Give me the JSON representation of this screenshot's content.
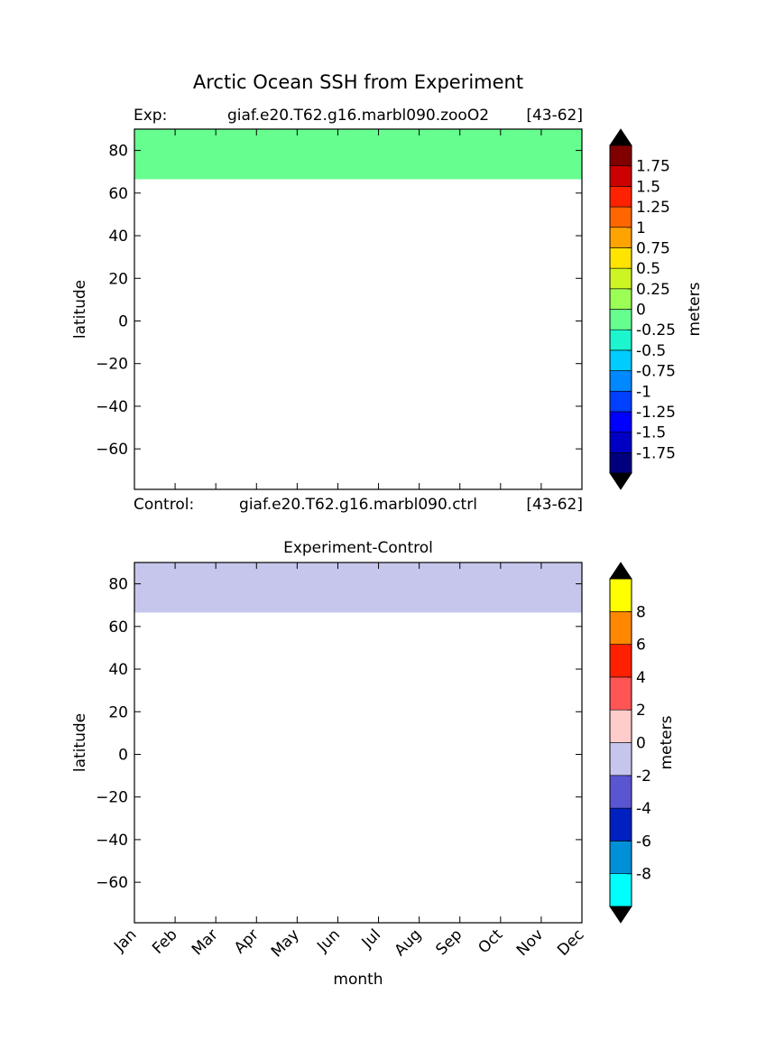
{
  "figure": {
    "suptitle": "Arctic Ocean SSH from Experiment"
  },
  "chart_data": [
    {
      "type": "heatmap",
      "panel": "top",
      "title": "",
      "header_left_label": "Exp:",
      "header_center": "giaf.e20.T62.g16.marbl090.zooO2",
      "header_right": "[43-62]",
      "footer_left_label": "Control:",
      "footer_center": "giaf.e20.T62.g16.marbl090.ctrl",
      "footer_right": "[43-62]",
      "xlabel": "",
      "ylabel": "latitude",
      "xlim": [
        0,
        11
      ],
      "ylim": [
        -79,
        90
      ],
      "yticks": [
        80,
        60,
        40,
        20,
        0,
        -20,
        -40,
        -60
      ],
      "ytick_labels": [
        "80",
        "60",
        "40",
        "20",
        "0",
        "−20",
        "−40",
        "−60"
      ],
      "xticks": [
        "Jan",
        "Feb",
        "Mar",
        "Apr",
        "May",
        "Jun",
        "Jul",
        "Aug",
        "Sep",
        "Oct",
        "Nov",
        "Dec"
      ],
      "xtick_labels_visible": false,
      "filled_band": {
        "lat_min": 66.5,
        "lat_max": 90,
        "value_range": [
          -0.25,
          0
        ],
        "color": "#66ff8f"
      },
      "colorbar": {
        "label": "meters",
        "extend": "both",
        "under_color": "#000000",
        "over_color": "#000000",
        "levels": [
          {
            "label": "-1.75",
            "color": "#00007f"
          },
          {
            "label": "-1.5",
            "color": "#0000c4"
          },
          {
            "label": "-1.25",
            "color": "#0000ff"
          },
          {
            "label": "-1",
            "color": "#0040ff"
          },
          {
            "label": "-0.75",
            "color": "#0088ff"
          },
          {
            "label": "-0.5",
            "color": "#00ccff"
          },
          {
            "label": "-0.25",
            "color": "#1df5cf"
          },
          {
            "label": "0",
            "color": "#66ff8f"
          },
          {
            "label": "0.25",
            "color": "#9cff56"
          },
          {
            "label": "0.5",
            "color": "#ccf523"
          },
          {
            "label": "0.75",
            "color": "#ffe400"
          },
          {
            "label": "1",
            "color": "#ffa300"
          },
          {
            "label": "1.25",
            "color": "#ff6600"
          },
          {
            "label": "1.5",
            "color": "#ff2200"
          },
          {
            "label": "1.75",
            "color": "#cc0000"
          },
          {
            "label": "",
            "color": "#800000"
          }
        ]
      }
    },
    {
      "type": "heatmap",
      "panel": "bottom",
      "title": "Experiment-Control",
      "xlabel": "month",
      "ylabel": "latitude",
      "xlim": [
        0,
        11
      ],
      "ylim": [
        -79,
        90
      ],
      "yticks": [
        80,
        60,
        40,
        20,
        0,
        -20,
        -40,
        -60
      ],
      "ytick_labels": [
        "80",
        "60",
        "40",
        "20",
        "0",
        "−20",
        "−40",
        "−60"
      ],
      "xticks": [
        "Jan",
        "Feb",
        "Mar",
        "Apr",
        "May",
        "Jun",
        "Jul",
        "Aug",
        "Sep",
        "Oct",
        "Nov",
        "Dec"
      ],
      "xtick_labels_visible": true,
      "filled_band": {
        "lat_min": 66.5,
        "lat_max": 90,
        "value_range": [
          -2,
          0
        ],
        "color": "#c6c6ed"
      },
      "colorbar": {
        "label": "meters",
        "extend": "both",
        "under_color": "#000000",
        "over_color": "#000000",
        "levels": [
          {
            "label": "-8",
            "color": "#00ffff"
          },
          {
            "label": "-6",
            "color": "#0090d8"
          },
          {
            "label": "-4",
            "color": "#0020c0"
          },
          {
            "label": "-2",
            "color": "#5a55d0"
          },
          {
            "label": "0",
            "color": "#c6c6ed"
          },
          {
            "label": "2",
            "color": "#ffcccc"
          },
          {
            "label": "4",
            "color": "#ff5555"
          },
          {
            "label": "6",
            "color": "#ff2000"
          },
          {
            "label": "8",
            "color": "#ff8800"
          },
          {
            "label": "",
            "color": "#ffff00"
          }
        ]
      }
    }
  ]
}
